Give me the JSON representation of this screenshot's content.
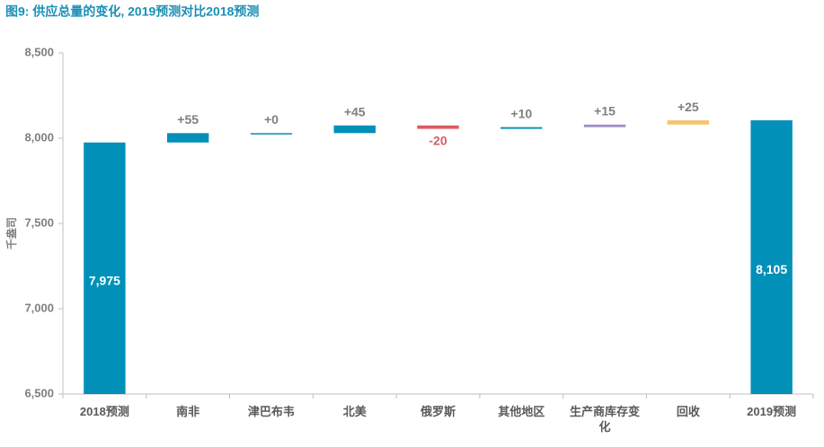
{
  "chart_data": {
    "type": "waterfall",
    "title": "图9: 供应总量的变化, 2019预测对比2018预测",
    "y_label": "千盎司",
    "categories": [
      "2018预测",
      "南非",
      "津巴布韦",
      "北美",
      "俄罗斯",
      "其他地区",
      "生产商库存变化",
      "回收",
      "2019预测"
    ],
    "values": [
      7975,
      55,
      0,
      45,
      -20,
      10,
      15,
      25,
      8105
    ],
    "value_labels": [
      "7,975",
      "+55",
      "+0",
      "+45",
      "-20",
      "+10",
      "+15",
      "+25",
      "8,105"
    ],
    "colors": [
      "#0090b8",
      "#0090b8",
      "#0090b8",
      "#0090b8",
      "#de5a60",
      "#0090b8",
      "#a08cc8",
      "#f5c46e",
      "#0090b8"
    ],
    "ylim": [
      6500,
      8500
    ],
    "yticks": [
      {
        "value": 6500,
        "label": "6,500"
      },
      {
        "value": 7000,
        "label": "7,000"
      },
      {
        "value": 7500,
        "label": "7,500"
      },
      {
        "value": 8000,
        "label": "8,000"
      },
      {
        "value": 8500,
        "label": "8,500"
      }
    ],
    "grid": false
  }
}
